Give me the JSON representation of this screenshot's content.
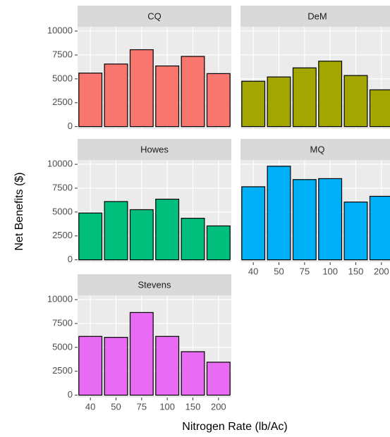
{
  "chart_data": {
    "type": "bar",
    "x_label": "Nitrogen Rate (lb/Ac)",
    "y_label": "Net Benefits ($)",
    "categories": [
      "40",
      "50",
      "75",
      "100",
      "150",
      "200"
    ],
    "ylim": [
      -250,
      10450
    ],
    "yticks": [
      0,
      2500,
      5000,
      7500,
      10000
    ],
    "grid": true,
    "facets": [
      {
        "title": "CQ",
        "color": "#F8766D",
        "values": [
          5600,
          6550,
          8050,
          6350,
          7350,
          5550
        ]
      },
      {
        "title": "DeM",
        "color": "#A3A500",
        "values": [
          4750,
          5200,
          6150,
          6850,
          5350,
          3850
        ]
      },
      {
        "title": "Howes",
        "color": "#00BF7D",
        "values": [
          4900,
          6100,
          5250,
          6350,
          4350,
          3550
        ]
      },
      {
        "title": "MQ",
        "color": "#00B0F6",
        "values": [
          7650,
          9800,
          8400,
          8500,
          6050,
          6650
        ]
      },
      {
        "title": "Stevens",
        "color": "#E76BF3",
        "values": [
          6150,
          6050,
          8650,
          6150,
          4550,
          3450
        ]
      }
    ]
  }
}
